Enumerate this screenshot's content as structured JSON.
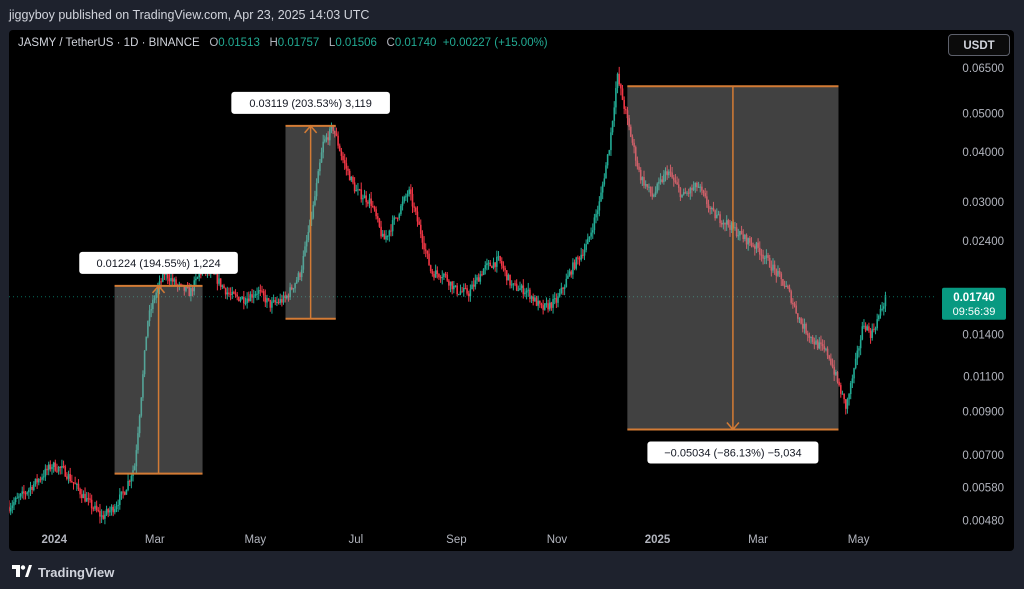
{
  "header": {
    "publisher_line": "jiggyboy published on TradingView.com, Apr 23, 2025 14:03 UTC"
  },
  "legend": {
    "symbol": "JASMY / TetherUS · 1D · BINANCE",
    "o_label": "O",
    "o_value": "0.01513",
    "h_label": "H",
    "h_value": "0.01757",
    "l_label": "L",
    "l_value": "0.01506",
    "c_label": "C",
    "c_value": "0.01740",
    "change": "+0.00227 (+15.00%)"
  },
  "currency_button": "USDT",
  "price_badge": {
    "price": "0.01740",
    "countdown": "09:56:39",
    "color": "#089981"
  },
  "footer": {
    "brand": "TradingView"
  },
  "colors": {
    "up": "#22ab94",
    "down": "#f23645",
    "measure_line": "#d37b35",
    "background": "#000000"
  },
  "chart_data": {
    "type": "candlestick",
    "title": "JASMY / TetherUS · 1D · BINANCE",
    "y_scale": "log",
    "ylim": [
      0.0046,
      0.072
    ],
    "y_ticks": [
      "0.06500",
      "0.05000",
      "0.04000",
      "0.03000",
      "0.02400",
      "0.01400",
      "0.01100",
      "0.00900",
      "0.00700",
      "0.00580",
      "0.00480"
    ],
    "x_ticks": [
      "2024",
      "Mar",
      "May",
      "Jul",
      "Sep",
      "Nov",
      "2025",
      "Mar",
      "May"
    ],
    "x_tick_months": [
      0,
      2,
      4,
      6,
      8,
      10,
      12,
      14,
      16
    ],
    "xlim_months": [
      -0.9,
      17.5
    ],
    "last_price": 0.0174,
    "price_path": [
      [
        -0.9,
        0.0052
      ],
      [
        -0.6,
        0.0056
      ],
      [
        -0.3,
        0.0061
      ],
      [
        -0.05,
        0.0066
      ],
      [
        0.2,
        0.0064
      ],
      [
        0.45,
        0.0058
      ],
      [
        0.7,
        0.0053
      ],
      [
        0.95,
        0.0049
      ],
      [
        1.2,
        0.0052
      ],
      [
        1.4,
        0.0057
      ],
      [
        1.6,
        0.0066
      ],
      [
        1.75,
        0.0105
      ],
      [
        1.85,
        0.015
      ],
      [
        2.0,
        0.0175
      ],
      [
        2.2,
        0.02
      ],
      [
        2.45,
        0.0185
      ],
      [
        2.7,
        0.0178
      ],
      [
        2.95,
        0.0205
      ],
      [
        3.2,
        0.0195
      ],
      [
        3.5,
        0.0175
      ],
      [
        3.8,
        0.0172
      ],
      [
        4.05,
        0.018
      ],
      [
        4.3,
        0.0166
      ],
      [
        4.6,
        0.0172
      ],
      [
        4.9,
        0.02
      ],
      [
        5.15,
        0.029
      ],
      [
        5.35,
        0.042
      ],
      [
        5.55,
        0.046
      ],
      [
        5.75,
        0.038
      ],
      [
        6.0,
        0.032
      ],
      [
        6.3,
        0.03
      ],
      [
        6.55,
        0.024
      ],
      [
        6.8,
        0.0275
      ],
      [
        7.05,
        0.032
      ],
      [
        7.3,
        0.025
      ],
      [
        7.5,
        0.02
      ],
      [
        7.75,
        0.0198
      ],
      [
        8.0,
        0.018
      ],
      [
        8.25,
        0.0178
      ],
      [
        8.55,
        0.0205
      ],
      [
        8.85,
        0.0215
      ],
      [
        9.1,
        0.0185
      ],
      [
        9.4,
        0.018
      ],
      [
        9.7,
        0.0162
      ],
      [
        10.0,
        0.017
      ],
      [
        10.3,
        0.0205
      ],
      [
        10.6,
        0.0235
      ],
      [
        10.85,
        0.03
      ],
      [
        11.05,
        0.042
      ],
      [
        11.2,
        0.062
      ],
      [
        11.4,
        0.048
      ],
      [
        11.65,
        0.035
      ],
      [
        11.9,
        0.031
      ],
      [
        12.2,
        0.036
      ],
      [
        12.5,
        0.031
      ],
      [
        12.8,
        0.033
      ],
      [
        13.1,
        0.028
      ],
      [
        13.4,
        0.0265
      ],
      [
        13.7,
        0.0245
      ],
      [
        14.0,
        0.023
      ],
      [
        14.3,
        0.0205
      ],
      [
        14.6,
        0.018
      ],
      [
        14.85,
        0.015
      ],
      [
        15.1,
        0.0135
      ],
      [
        15.4,
        0.0125
      ],
      [
        15.6,
        0.0105
      ],
      [
        15.75,
        0.0092
      ],
      [
        15.95,
        0.012
      ],
      [
        16.1,
        0.015
      ],
      [
        16.25,
        0.014
      ],
      [
        16.4,
        0.0155
      ],
      [
        16.55,
        0.0174
      ]
    ],
    "measurements": [
      {
        "label": "0.01224 (194.55%) 1,224",
        "from_month": 1.2,
        "to_month": 2.95,
        "from_price": 0.00629,
        "to_price": 0.01853,
        "direction": "up"
      },
      {
        "label": "0.03119 (203.53%) 3,119",
        "from_month": 4.6,
        "to_month": 5.6,
        "from_price": 0.01533,
        "to_price": 0.04652,
        "direction": "up"
      },
      {
        "label": "−0.05034 (−86.13%) −5,034",
        "from_month": 11.4,
        "to_month": 15.6,
        "from_price": 0.05845,
        "to_price": 0.00811,
        "direction": "down"
      }
    ]
  }
}
